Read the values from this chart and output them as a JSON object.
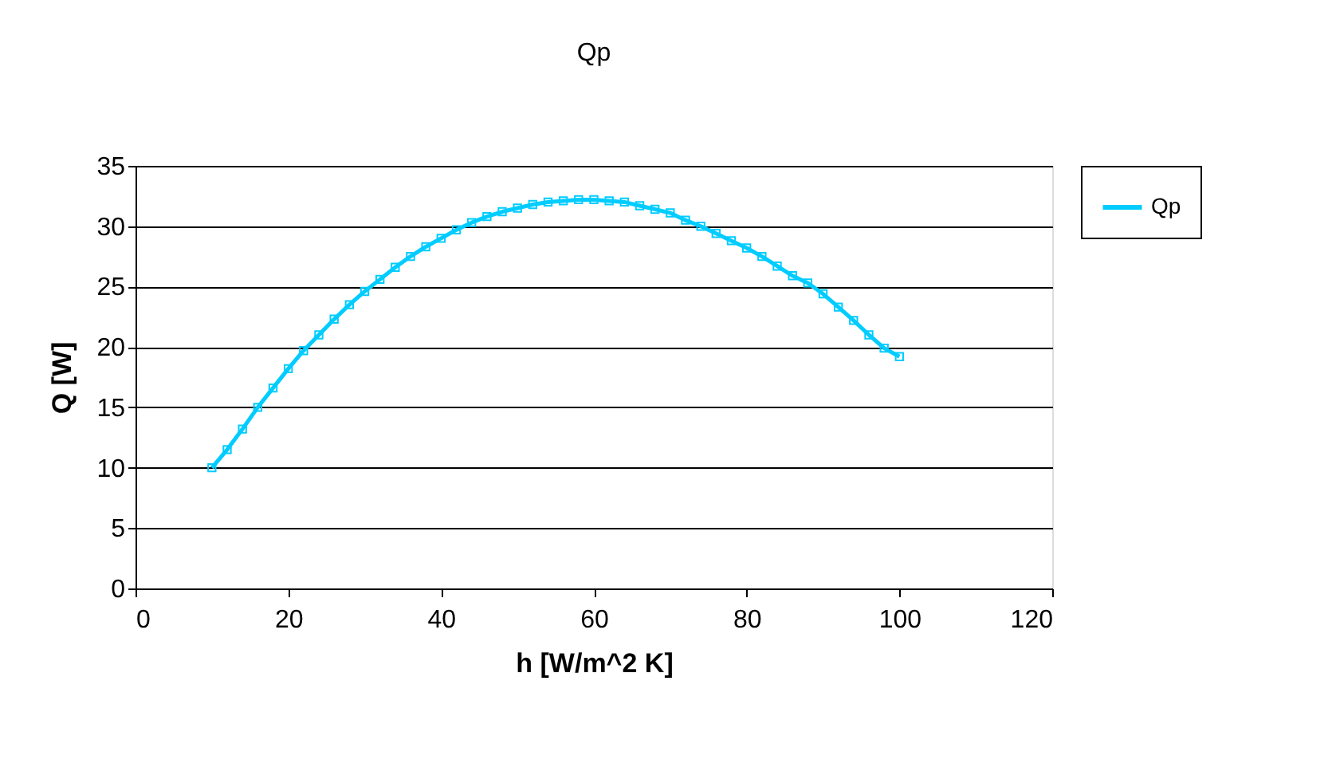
{
  "chart_data": {
    "type": "line",
    "title": "Qp",
    "xlabel": "h [W/m^2 K]",
    "ylabel": "Q [W]",
    "x": [
      10,
      12,
      14,
      16,
      18,
      20,
      22,
      24,
      26,
      28,
      30,
      32,
      34,
      36,
      38,
      40,
      42,
      44,
      46,
      48,
      50,
      52,
      54,
      56,
      58,
      60,
      62,
      64,
      66,
      68,
      70,
      72,
      74,
      76,
      78,
      80,
      82,
      84,
      86,
      88,
      90,
      92,
      94,
      96,
      98,
      100
    ],
    "series": [
      {
        "name": "Qp",
        "color": "#00ccff",
        "values": [
          10,
          11.5,
          13.2,
          15,
          16.6,
          18.2,
          19.7,
          21,
          22.3,
          23.5,
          24.6,
          25.6,
          26.6,
          27.5,
          28.3,
          29,
          29.7,
          30.3,
          30.8,
          31.2,
          31.5,
          31.8,
          32,
          32.1,
          32.2,
          32.2,
          32.1,
          32,
          31.7,
          31.4,
          31.1,
          30.5,
          30,
          29.4,
          28.8,
          28.2,
          27.5,
          26.7,
          25.9,
          25.3,
          24.4,
          23.3,
          22.2,
          21,
          19.9,
          19.2
        ]
      }
    ],
    "xlim": [
      0,
      120
    ],
    "xticks": [
      0,
      20,
      40,
      60,
      80,
      100,
      120
    ],
    "ylim": [
      0,
      35
    ],
    "yticks": [
      0,
      5,
      10,
      15,
      20,
      25,
      30,
      35
    ],
    "grid": "y",
    "legend": "right",
    "marker": "square",
    "line_style": "solid"
  }
}
